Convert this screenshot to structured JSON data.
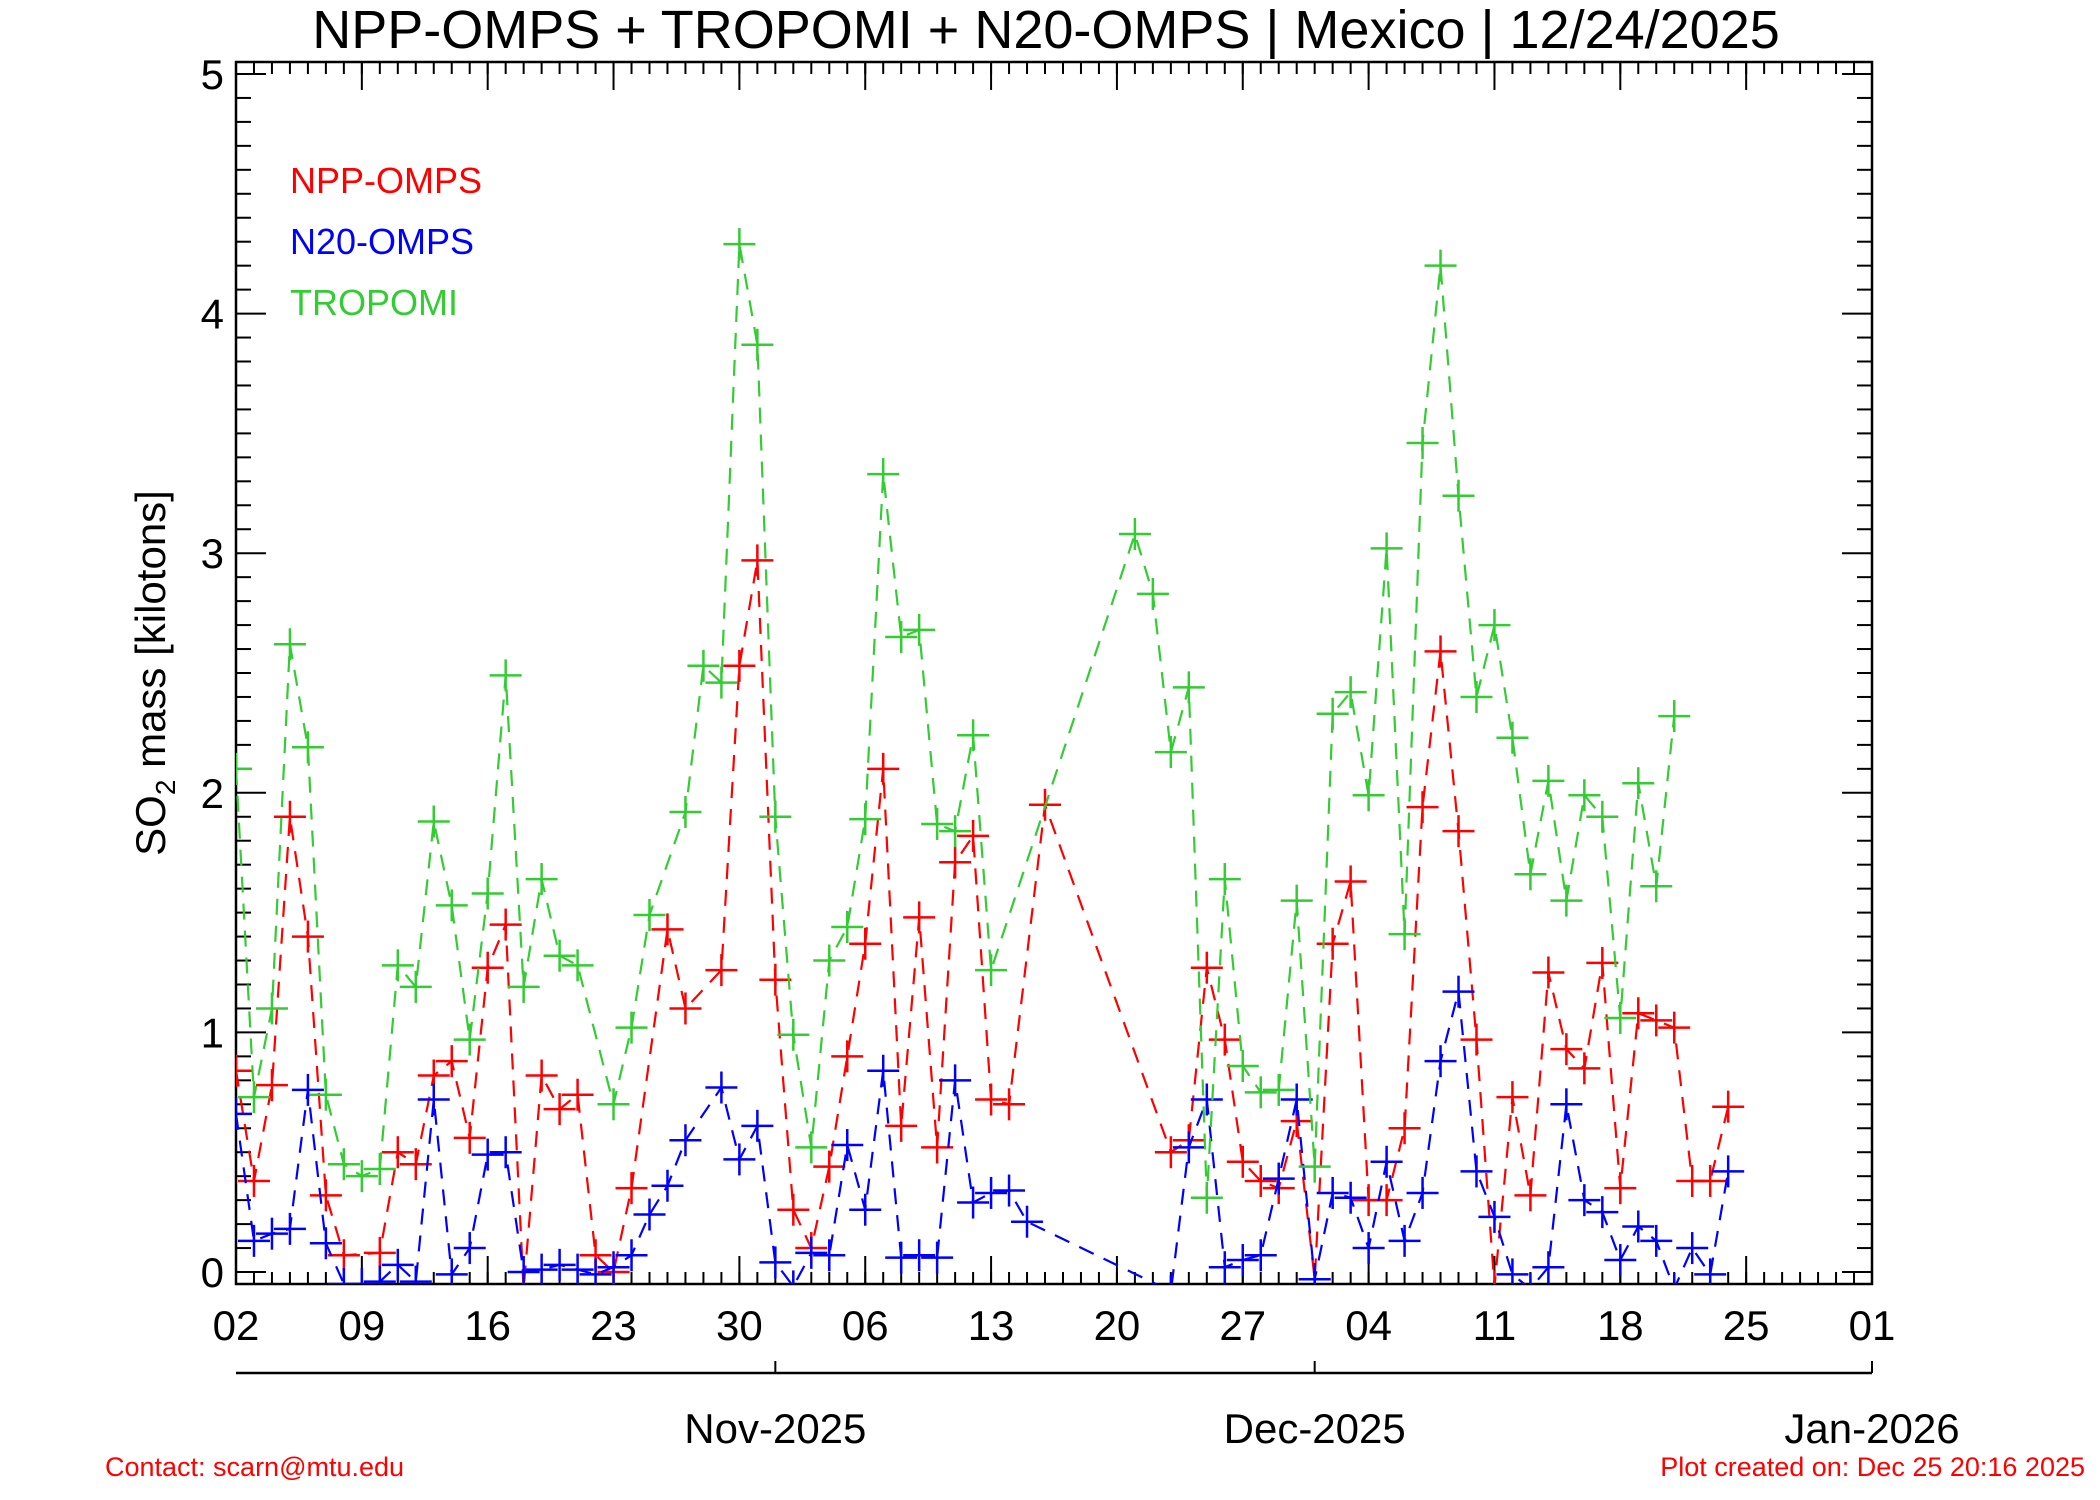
{
  "chart_data": {
    "type": "line",
    "title": "NPP-OMPS + TROPOMI + N20-OMPS | Mexico | 12/24/2025",
    "ylabel_main": "SO",
    "ylabel_sub": "2",
    "ylabel_rest": " mass [kilotons]",
    "ylim": [
      -0.05,
      5.05
    ],
    "xlim": [
      "2025-10-02",
      "2026-01-01"
    ],
    "grid": false,
    "legend_placement": "top-left",
    "marker": "plus",
    "line_style": "dashed",
    "yticks": [
      "0",
      "1",
      "2",
      "3",
      "4",
      "5"
    ],
    "x_ticks": [
      {
        "date": "2025-10-02",
        "label": "02"
      },
      {
        "date": "2025-10-09",
        "label": "09"
      },
      {
        "date": "2025-10-16",
        "label": "16"
      },
      {
        "date": "2025-10-23",
        "label": "23"
      },
      {
        "date": "2025-10-30",
        "label": "30"
      },
      {
        "date": "2025-11-06",
        "label": "06"
      },
      {
        "date": "2025-11-13",
        "label": "13"
      },
      {
        "date": "2025-11-20",
        "label": "20"
      },
      {
        "date": "2025-11-27",
        "label": "27"
      },
      {
        "date": "2025-12-04",
        "label": "04"
      },
      {
        "date": "2025-12-11",
        "label": "11"
      },
      {
        "date": "2025-12-18",
        "label": "18"
      },
      {
        "date": "2025-12-25",
        "label": "25"
      },
      {
        "date": "2026-01-01",
        "label": "01"
      }
    ],
    "month_ticks": [
      {
        "date": "2025-11-01",
        "label": "Nov-2025"
      },
      {
        "date": "2025-12-01",
        "label": "Dec-2025"
      },
      {
        "date": "2026-01-01",
        "label": "Jan-2026"
      }
    ],
    "series": [
      {
        "name": "NPP-OMPS",
        "color": "#ff0000",
        "points": [
          [
            "2025-10-02",
            0.84
          ],
          [
            "2025-10-03",
            0.38
          ],
          [
            "2025-10-04",
            0.78
          ],
          [
            "2025-10-05",
            1.9
          ],
          [
            "2025-10-06",
            1.4
          ],
          [
            "2025-10-07",
            0.32
          ],
          [
            "2025-10-08",
            0.07
          ],
          [
            "2025-10-10",
            0.08
          ],
          [
            "2025-10-11",
            0.5
          ],
          [
            "2025-10-12",
            0.45
          ],
          [
            "2025-10-13",
            0.82
          ],
          [
            "2025-10-14",
            0.88
          ],
          [
            "2025-10-15",
            0.56
          ],
          [
            "2025-10-16",
            1.27
          ],
          [
            "2025-10-17",
            1.45
          ],
          [
            "2025-10-18",
            -0.07
          ],
          [
            "2025-10-19",
            0.82
          ],
          [
            "2025-10-20",
            0.68
          ],
          [
            "2025-10-21",
            0.74
          ],
          [
            "2025-10-22",
            0.07
          ],
          [
            "2025-10-23",
            0.0
          ],
          [
            "2025-10-24",
            0.35
          ],
          [
            "2025-10-26",
            1.43
          ],
          [
            "2025-10-27",
            1.1
          ],
          [
            "2025-10-29",
            1.26
          ],
          [
            "2025-10-30",
            2.53
          ],
          [
            "2025-10-31",
            2.97
          ],
          [
            "2025-11-01",
            1.22
          ],
          [
            "2025-11-02",
            0.26
          ],
          [
            "2025-11-03",
            0.1
          ],
          [
            "2025-11-04",
            0.44
          ],
          [
            "2025-11-05",
            0.9
          ],
          [
            "2025-11-06",
            1.37
          ],
          [
            "2025-11-07",
            2.1
          ],
          [
            "2025-11-08",
            0.61
          ],
          [
            "2025-11-09",
            1.48
          ],
          [
            "2025-11-10",
            0.52
          ],
          [
            "2025-11-11",
            1.71
          ],
          [
            "2025-11-12",
            1.82
          ],
          [
            "2025-11-13",
            0.72
          ],
          [
            "2025-11-14",
            0.7
          ],
          [
            "2025-11-16",
            1.95
          ],
          [
            "2025-11-23",
            0.5
          ],
          [
            "2025-11-24",
            0.55
          ],
          [
            "2025-11-25",
            1.27
          ],
          [
            "2025-11-26",
            0.97
          ],
          [
            "2025-11-27",
            0.46
          ],
          [
            "2025-11-28",
            0.38
          ],
          [
            "2025-11-29",
            0.35
          ],
          [
            "2025-11-30",
            0.63
          ],
          [
            "2025-12-01",
            -0.03
          ],
          [
            "2025-12-02",
            1.37
          ],
          [
            "2025-12-03",
            1.63
          ],
          [
            "2025-12-04",
            0.3
          ],
          [
            "2025-12-05",
            0.3
          ],
          [
            "2025-12-06",
            0.6
          ],
          [
            "2025-12-07",
            1.94
          ],
          [
            "2025-12-08",
            2.59
          ],
          [
            "2025-12-09",
            1.84
          ],
          [
            "2025-12-10",
            0.97
          ],
          [
            "2025-12-11",
            -0.06
          ],
          [
            "2025-12-12",
            0.73
          ],
          [
            "2025-12-13",
            0.32
          ],
          [
            "2025-12-14",
            1.25
          ],
          [
            "2025-12-15",
            0.93
          ],
          [
            "2025-12-16",
            0.85
          ],
          [
            "2025-12-17",
            1.29
          ],
          [
            "2025-12-18",
            0.35
          ],
          [
            "2025-12-19",
            1.08
          ],
          [
            "2025-12-20",
            1.05
          ],
          [
            "2025-12-21",
            1.02
          ],
          [
            "2025-12-22",
            0.38
          ],
          [
            "2025-12-23",
            0.38
          ],
          [
            "2025-12-24",
            0.69
          ]
        ]
      },
      {
        "name": "N20-OMPS",
        "color": "#0000ff",
        "points": [
          [
            "2025-10-02",
            0.66
          ],
          [
            "2025-10-03",
            0.13
          ],
          [
            "2025-10-04",
            0.16
          ],
          [
            "2025-10-05",
            0.18
          ],
          [
            "2025-10-06",
            0.76
          ],
          [
            "2025-10-07",
            0.12
          ],
          [
            "2025-10-08",
            -0.05
          ],
          [
            "2025-10-09",
            -0.05
          ],
          [
            "2025-10-10",
            -0.04
          ],
          [
            "2025-10-11",
            0.03
          ],
          [
            "2025-10-12",
            -0.04
          ],
          [
            "2025-10-13",
            0.72
          ],
          [
            "2025-10-14",
            -0.01
          ],
          [
            "2025-10-15",
            0.1
          ],
          [
            "2025-10-16",
            0.49
          ],
          [
            "2025-10-17",
            0.5
          ],
          [
            "2025-10-18",
            0.0
          ],
          [
            "2025-10-19",
            0.01
          ],
          [
            "2025-10-20",
            0.03
          ],
          [
            "2025-10-21",
            0.01
          ],
          [
            "2025-10-22",
            -0.01
          ],
          [
            "2025-10-23",
            0.02
          ],
          [
            "2025-10-24",
            0.07
          ],
          [
            "2025-10-25",
            0.24
          ],
          [
            "2025-10-26",
            0.36
          ],
          [
            "2025-10-27",
            0.55
          ],
          [
            "2025-10-29",
            0.77
          ],
          [
            "2025-10-30",
            0.47
          ],
          [
            "2025-10-31",
            0.61
          ],
          [
            "2025-11-01",
            0.04
          ],
          [
            "2025-11-02",
            -0.06
          ],
          [
            "2025-11-03",
            0.08
          ],
          [
            "2025-11-04",
            0.07
          ],
          [
            "2025-11-05",
            0.53
          ],
          [
            "2025-11-06",
            0.26
          ],
          [
            "2025-11-07",
            0.84
          ],
          [
            "2025-11-08",
            0.06
          ],
          [
            "2025-11-09",
            0.07
          ],
          [
            "2025-11-10",
            0.06
          ],
          [
            "2025-11-11",
            0.8
          ],
          [
            "2025-11-12",
            0.29
          ],
          [
            "2025-11-13",
            0.33
          ],
          [
            "2025-11-14",
            0.34
          ],
          [
            "2025-11-15",
            0.21
          ],
          [
            "2025-11-23",
            -0.08
          ],
          [
            "2025-11-24",
            0.52
          ],
          [
            "2025-11-25",
            0.72
          ],
          [
            "2025-11-26",
            0.02
          ],
          [
            "2025-11-27",
            0.05
          ],
          [
            "2025-11-28",
            0.07
          ],
          [
            "2025-11-29",
            0.39
          ],
          [
            "2025-11-30",
            0.72
          ],
          [
            "2025-12-01",
            -0.03
          ],
          [
            "2025-12-02",
            0.33
          ],
          [
            "2025-12-03",
            0.31
          ],
          [
            "2025-12-04",
            0.1
          ],
          [
            "2025-12-05",
            0.46
          ],
          [
            "2025-12-06",
            0.13
          ],
          [
            "2025-12-07",
            0.33
          ],
          [
            "2025-12-08",
            0.88
          ],
          [
            "2025-12-09",
            1.17
          ],
          [
            "2025-12-10",
            0.42
          ],
          [
            "2025-12-11",
            0.23
          ],
          [
            "2025-12-12",
            -0.01
          ],
          [
            "2025-12-13",
            -0.07
          ],
          [
            "2025-12-14",
            0.02
          ],
          [
            "2025-12-15",
            0.7
          ],
          [
            "2025-12-16",
            0.3
          ],
          [
            "2025-12-17",
            0.25
          ],
          [
            "2025-12-18",
            0.05
          ],
          [
            "2025-12-19",
            0.19
          ],
          [
            "2025-12-20",
            0.13
          ],
          [
            "2025-12-21",
            -0.07
          ],
          [
            "2025-12-22",
            0.1
          ],
          [
            "2025-12-23",
            -0.01
          ],
          [
            "2025-12-24",
            0.42
          ]
        ]
      },
      {
        "name": "TROPOMI",
        "color": "#33cc33",
        "points": [
          [
            "2025-10-02",
            2.1
          ],
          [
            "2025-10-03",
            0.73
          ],
          [
            "2025-10-04",
            1.1
          ],
          [
            "2025-10-05",
            2.62
          ],
          [
            "2025-10-06",
            2.19
          ],
          [
            "2025-10-07",
            0.74
          ],
          [
            "2025-10-08",
            0.45
          ],
          [
            "2025-10-09",
            0.4
          ],
          [
            "2025-10-10",
            0.43
          ],
          [
            "2025-10-11",
            1.28
          ],
          [
            "2025-10-12",
            1.19
          ],
          [
            "2025-10-13",
            1.88
          ],
          [
            "2025-10-14",
            1.53
          ],
          [
            "2025-10-15",
            0.97
          ],
          [
            "2025-10-16",
            1.58
          ],
          [
            "2025-10-17",
            2.49
          ],
          [
            "2025-10-18",
            1.19
          ],
          [
            "2025-10-19",
            1.64
          ],
          [
            "2025-10-20",
            1.32
          ],
          [
            "2025-10-21",
            1.28
          ],
          [
            "2025-10-23",
            0.7
          ],
          [
            "2025-10-24",
            1.02
          ],
          [
            "2025-10-25",
            1.49
          ],
          [
            "2025-10-27",
            1.92
          ],
          [
            "2025-10-28",
            2.53
          ],
          [
            "2025-10-29",
            2.46
          ],
          [
            "2025-10-30",
            4.29
          ],
          [
            "2025-10-31",
            3.87
          ],
          [
            "2025-11-01",
            1.9
          ],
          [
            "2025-11-02",
            0.99
          ],
          [
            "2025-11-03",
            0.52
          ],
          [
            "2025-11-04",
            1.3
          ],
          [
            "2025-11-05",
            1.44
          ],
          [
            "2025-11-06",
            1.89
          ],
          [
            "2025-11-07",
            3.33
          ],
          [
            "2025-11-08",
            2.65
          ],
          [
            "2025-11-09",
            2.68
          ],
          [
            "2025-11-10",
            1.87
          ],
          [
            "2025-11-11",
            1.84
          ],
          [
            "2025-11-12",
            2.24
          ],
          [
            "2025-11-13",
            1.26
          ],
          [
            "2025-11-21",
            3.08
          ],
          [
            "2025-11-22",
            2.83
          ],
          [
            "2025-11-23",
            2.17
          ],
          [
            "2025-11-24",
            2.44
          ],
          [
            "2025-11-25",
            0.31
          ],
          [
            "2025-11-26",
            1.64
          ],
          [
            "2025-11-27",
            0.86
          ],
          [
            "2025-11-28",
            0.75
          ],
          [
            "2025-11-29",
            0.76
          ],
          [
            "2025-11-30",
            1.55
          ],
          [
            "2025-12-01",
            0.44
          ],
          [
            "2025-12-02",
            2.33
          ],
          [
            "2025-12-03",
            2.42
          ],
          [
            "2025-12-04",
            1.99
          ],
          [
            "2025-12-05",
            3.02
          ],
          [
            "2025-12-06",
            1.41
          ],
          [
            "2025-12-07",
            3.46
          ],
          [
            "2025-12-08",
            4.2
          ],
          [
            "2025-12-09",
            3.24
          ],
          [
            "2025-12-10",
            2.4
          ],
          [
            "2025-12-11",
            2.7
          ],
          [
            "2025-12-12",
            2.23
          ],
          [
            "2025-12-13",
            1.66
          ],
          [
            "2025-12-14",
            2.05
          ],
          [
            "2025-12-15",
            1.55
          ],
          [
            "2025-12-16",
            1.99
          ],
          [
            "2025-12-17",
            1.9
          ],
          [
            "2025-12-18",
            1.06
          ],
          [
            "2025-12-19",
            2.04
          ],
          [
            "2025-12-20",
            1.61
          ],
          [
            "2025-12-21",
            2.32
          ]
        ]
      }
    ]
  },
  "footer": {
    "contact": "Contact: scarn@mtu.edu",
    "created": "Plot created on: Dec 25 20:16 2025"
  }
}
